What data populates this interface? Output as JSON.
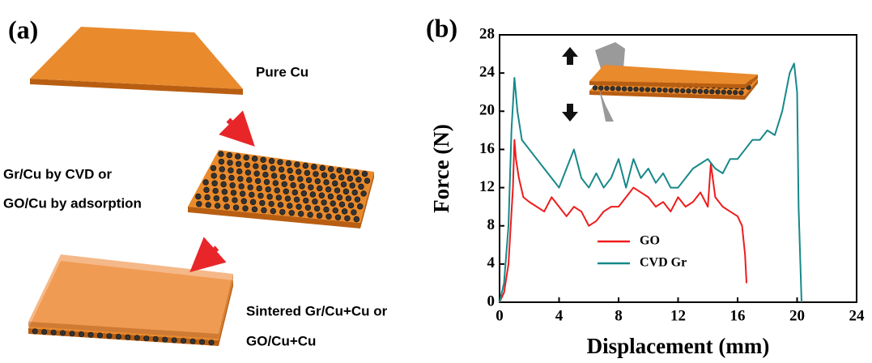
{
  "panel_a": {
    "label": "(a)",
    "captions": [
      "Pure Cu",
      "Gr/Cu by CVD or",
      "GO/Cu by adsorption",
      "Sintered Gr/Cu+Cu or",
      "GO/Cu+Cu"
    ]
  },
  "chart_data": {
    "type": "line",
    "panel_label": "(b)",
    "x_label": "Displacement (mm)",
    "y_label": "Force (N)",
    "xlim": [
      0,
      24
    ],
    "xticks": [
      0,
      4,
      8,
      12,
      16,
      20,
      24
    ],
    "ylim": [
      0,
      28
    ],
    "yticks": [
      0,
      4,
      8,
      12,
      16,
      20,
      24,
      28
    ],
    "series": [
      {
        "name": "GO",
        "color": "#ee1c1c",
        "x": [
          0,
          0.3,
          0.6,
          0.9,
          1.0,
          1.1,
          1.3,
          1.6,
          2,
          2.5,
          3,
          3.5,
          4,
          4.5,
          5,
          5.5,
          6,
          6.5,
          7,
          7.5,
          8,
          8.5,
          9,
          9.5,
          10,
          10.5,
          11,
          11.5,
          12,
          12.5,
          13,
          13.5,
          14,
          14.2,
          14.5,
          15,
          15.5,
          16,
          16.3,
          16.5,
          16.6
        ],
        "values": [
          0,
          1,
          4,
          12,
          17,
          15,
          13,
          11,
          10.5,
          10,
          9.5,
          11,
          10,
          9,
          10,
          9.5,
          8,
          8.5,
          9.5,
          10,
          10,
          11,
          12,
          11.5,
          11,
          10,
          10.5,
          9.5,
          11,
          10,
          10.5,
          11.5,
          10,
          14.5,
          11,
          10,
          9.5,
          9,
          8,
          5,
          2
        ]
      },
      {
        "name": "CVD Gr",
        "color": "#17888a",
        "x": [
          0,
          0.3,
          0.6,
          0.8,
          1.0,
          1.2,
          1.5,
          2,
          2.5,
          3,
          3.5,
          4,
          4.5,
          5,
          5.5,
          6,
          6.5,
          7,
          7.5,
          8,
          8.5,
          9,
          9.5,
          10,
          10.5,
          11,
          11.5,
          12,
          12.5,
          13,
          13.5,
          14,
          14.5,
          15,
          15.5,
          16,
          16.5,
          17,
          17.5,
          18,
          18.5,
          19,
          19.5,
          19.8,
          20,
          20.1,
          20.3
        ],
        "values": [
          0,
          2,
          8,
          18,
          23.5,
          20,
          17,
          16,
          15,
          14,
          13,
          12,
          14,
          16,
          13,
          12,
          13.5,
          12,
          13,
          15,
          12,
          15,
          13,
          14,
          12.5,
          13.5,
          12,
          12,
          13,
          14,
          14.5,
          15,
          14,
          13.5,
          15,
          15,
          16,
          17,
          17,
          18,
          17.5,
          20,
          24,
          25,
          22,
          10,
          0
        ]
      }
    ]
  }
}
